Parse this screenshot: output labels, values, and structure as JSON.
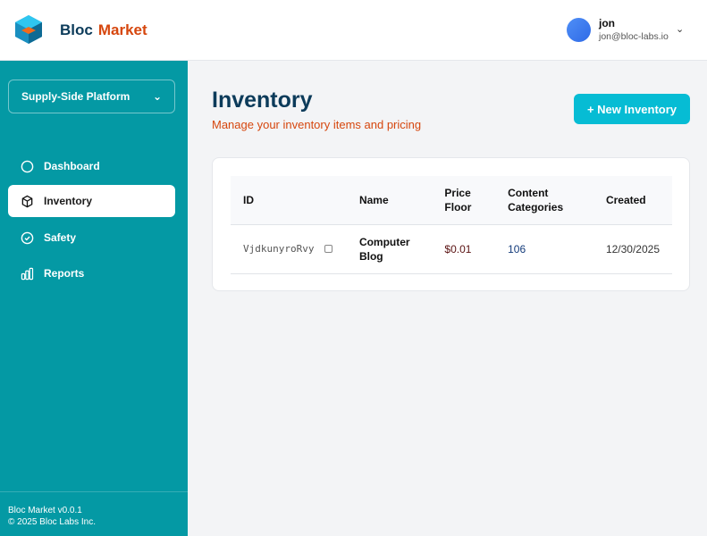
{
  "brand": {
    "part1": "Bloc",
    "part2": "Market"
  },
  "user": {
    "name": "jon",
    "email": "jon@bloc-labs.io"
  },
  "sidebar": {
    "platform": "Supply-Side Platform",
    "items": [
      {
        "label": "Dashboard",
        "icon": "circle-icon"
      },
      {
        "label": "Inventory",
        "icon": "box-icon",
        "active": true
      },
      {
        "label": "Safety",
        "icon": "check-circle-icon"
      },
      {
        "label": "Reports",
        "icon": "bar-chart-icon"
      }
    ],
    "version": "Bloc Market v0.0.1",
    "copyright": "© 2025 Bloc Labs Inc."
  },
  "page": {
    "title": "Inventory",
    "subtitle": "Manage your inventory items and pricing",
    "new_button": "+ New Inventory"
  },
  "table": {
    "headers": [
      "ID",
      "Name",
      "Price Floor",
      "Content Categories",
      "Created"
    ],
    "rows": [
      {
        "id": "VjdkunyroRvy",
        "name": "Computer Blog",
        "price_floor": "$0.01",
        "content_categories": "106",
        "created": "12/30/2025"
      }
    ]
  },
  "colors": {
    "accent": "#0499a4",
    "button": "#06bcd4",
    "brand_orange": "#d6470e",
    "brand_navy": "#0c3b5a"
  }
}
